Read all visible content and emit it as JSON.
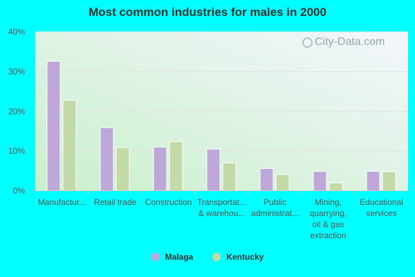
{
  "chart_data": {
    "type": "bar",
    "title": "Most common industries for males in 2000",
    "categories": [
      [
        "Manufactur..."
      ],
      [
        "Retail trade"
      ],
      [
        "Construction"
      ],
      [
        "Transportat...",
        "& warehou..."
      ],
      [
        "Public",
        "administrat..."
      ],
      [
        "Mining,",
        "quarrying,",
        "oil & gas",
        "extraction"
      ],
      [
        "Educational",
        "services"
      ]
    ],
    "series": [
      {
        "name": "Malaga",
        "color": "#bea8d8",
        "values": [
          32.6,
          15.9,
          11.0,
          10.5,
          5.6,
          4.9,
          4.9
        ]
      },
      {
        "name": "Kentucky",
        "color": "#c4d9a8",
        "values": [
          22.8,
          10.9,
          12.4,
          7.0,
          4.1,
          2.0,
          4.8
        ]
      }
    ],
    "yticks": [
      "0%",
      "10%",
      "20%",
      "30%",
      "40%"
    ],
    "ylim": [
      0,
      40
    ],
    "grid": true,
    "legend": "bottom-center"
  },
  "watermark": "City-Data.com"
}
